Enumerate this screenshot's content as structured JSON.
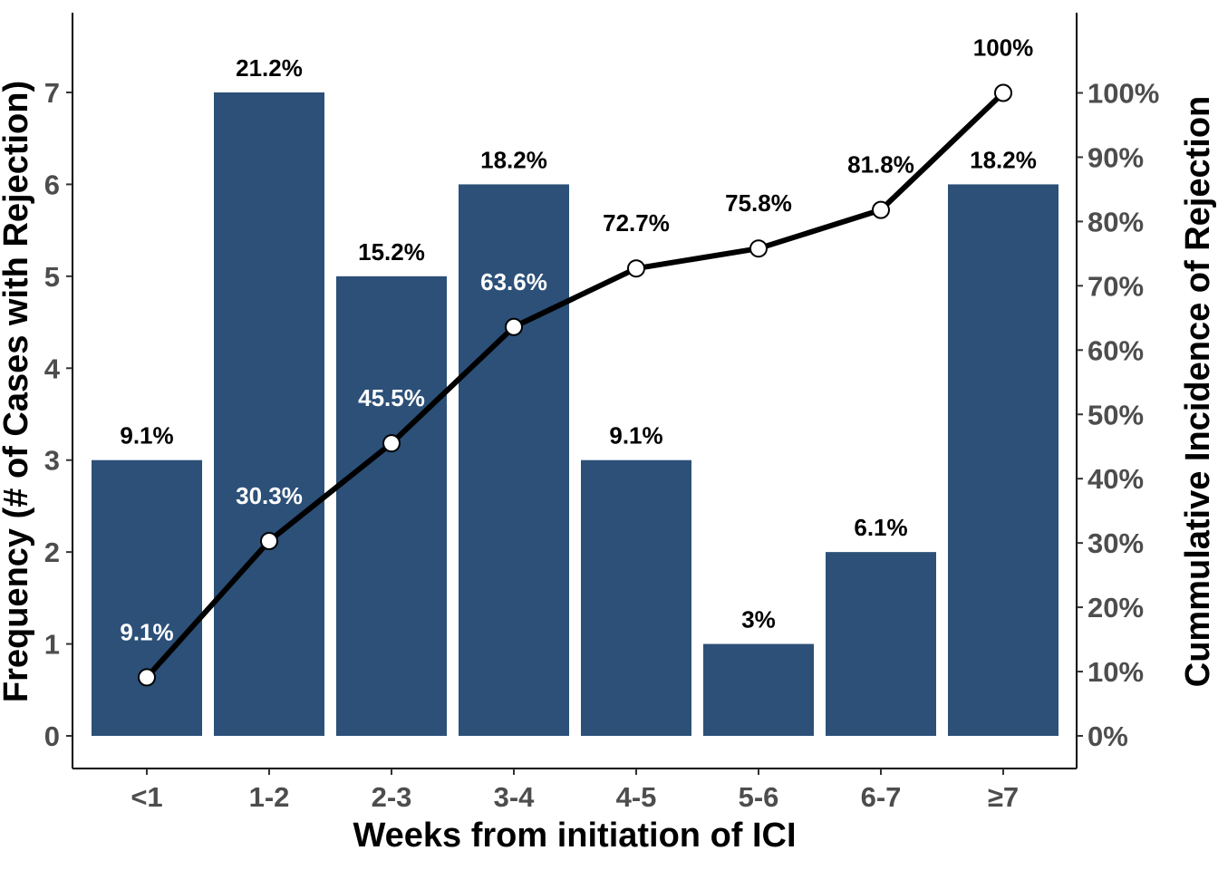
{
  "chart_data": {
    "type": "bar",
    "categories": [
      "<1",
      "1-2",
      "2-3",
      "3-4",
      "4-5",
      "5-6",
      "6-7",
      "≥7"
    ],
    "series": [
      {
        "type": "bar",
        "values": [
          3,
          7,
          5,
          6,
          3,
          1,
          2,
          6
        ],
        "labels": [
          "9.1%",
          "21.2%",
          "15.2%",
          "18.2%",
          "9.1%",
          "3%",
          "6.1%",
          "18.2%"
        ],
        "color": "#2c5078"
      },
      {
        "type": "line",
        "axis": "right",
        "values": [
          9.1,
          30.3,
          45.5,
          63.6,
          72.7,
          75.8,
          81.8,
          100
        ],
        "labels": [
          "9.1%",
          "30.3%",
          "45.5%",
          "63.6%",
          "72.7%",
          "75.8%",
          "81.8%",
          "100%"
        ],
        "label_colors": [
          "#ffffff",
          "#ffffff",
          "#ffffff",
          "#ffffff",
          "#000000",
          "#000000",
          "#000000",
          "#000000"
        ],
        "color": "#000000",
        "marker_fill": "#ffffff"
      }
    ],
    "xlabel": "Weeks from initiation of ICI",
    "ylabel": "Frequency (# of Cases with Rejection)",
    "y2label": "Cummulative Incidence of Rejection",
    "ylim": [
      0,
      7.7
    ],
    "yticks": [
      "0",
      "1",
      "2",
      "3",
      "4",
      "5",
      "6",
      "7"
    ],
    "y2lim": [
      0,
      109
    ],
    "y2ticks": [
      "0%",
      "10%",
      "20%",
      "30%",
      "40%",
      "50%",
      "60%",
      "70%",
      "80%",
      "90%",
      "100%"
    ],
    "grid": false,
    "legend": "none"
  }
}
